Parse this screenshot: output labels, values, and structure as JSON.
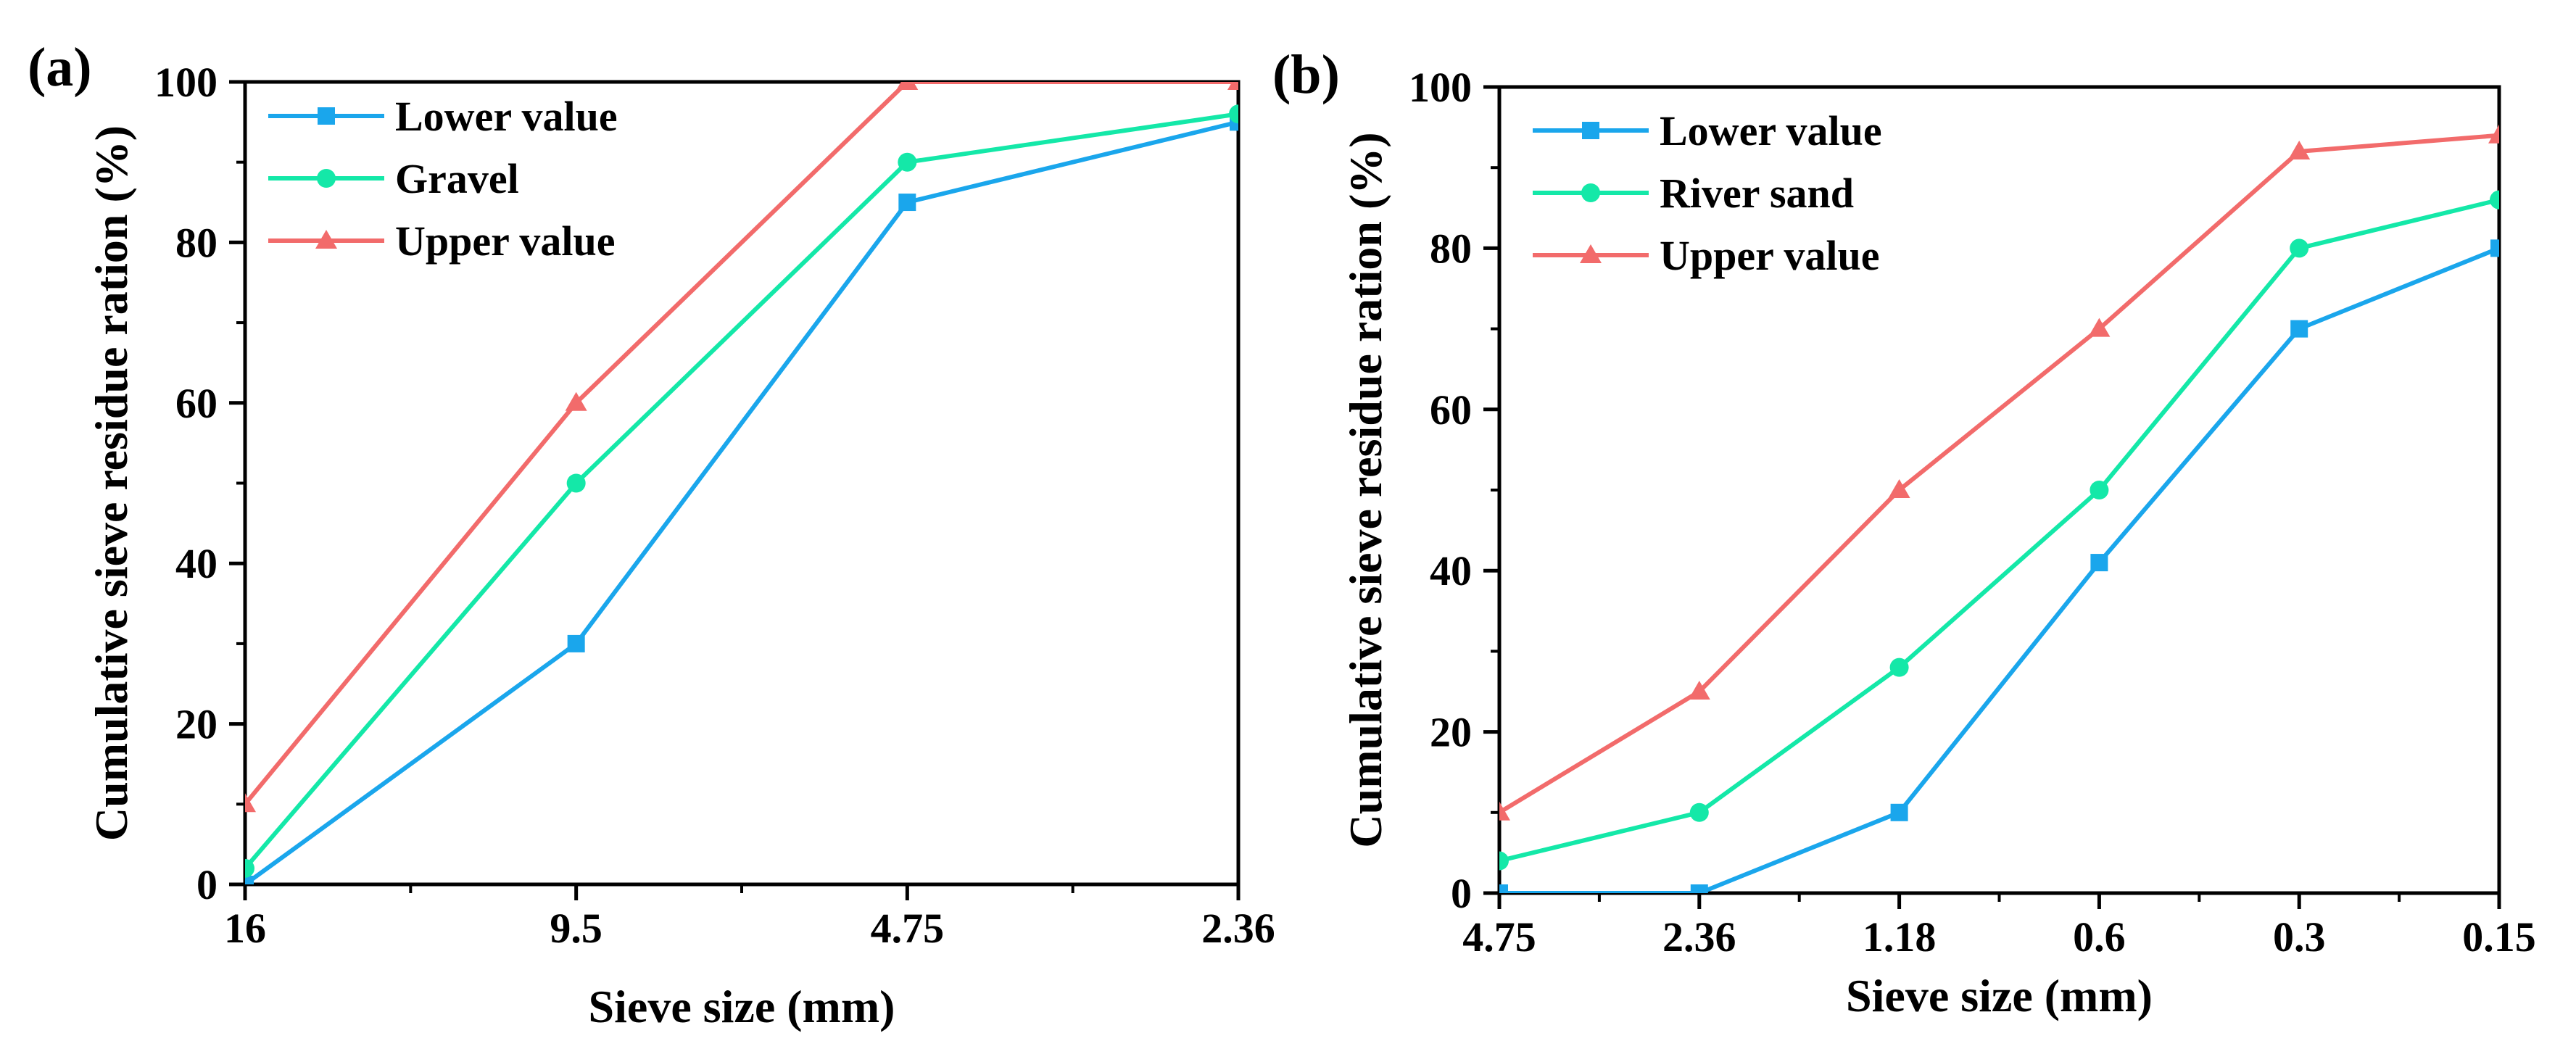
{
  "chart_data": [
    {
      "panel_label": "(a)",
      "type": "line",
      "xlabel": "Sieve size (mm)",
      "ylabel": "Cumulative sieve residue ration (%)",
      "categories": [
        "16",
        "9.5",
        "4.75",
        "2.36"
      ],
      "ylim": [
        0,
        100
      ],
      "yticks": [
        "0",
        "20",
        "40",
        "60",
        "80",
        "100"
      ],
      "grid": false,
      "legend_position": "top-left",
      "series": [
        {
          "name": "Lower value",
          "color": "#1AA6EC",
          "marker": "square",
          "values": [
            0,
            30,
            85,
            95
          ]
        },
        {
          "name": "Gravel",
          "color": "#14E8A8",
          "marker": "circle",
          "values": [
            2,
            50,
            90,
            96
          ]
        },
        {
          "name": "Upper value",
          "color": "#F26B6B",
          "marker": "triangle",
          "values": [
            10,
            60,
            100,
            100
          ]
        }
      ]
    },
    {
      "panel_label": "(b)",
      "type": "line",
      "xlabel": "Sieve size (mm)",
      "ylabel": "Cumulative sieve residue ration (%)",
      "categories": [
        "4.75",
        "2.36",
        "1.18",
        "0.6",
        "0.3",
        "0.15"
      ],
      "ylim": [
        0,
        100
      ],
      "yticks": [
        "0",
        "20",
        "40",
        "60",
        "80",
        "100"
      ],
      "grid": false,
      "legend_position": "top-left",
      "series": [
        {
          "name": "Lower value",
          "color": "#1AA6EC",
          "marker": "square",
          "values": [
            0,
            0,
            10,
            41,
            70,
            80
          ]
        },
        {
          "name": "River sand",
          "color": "#14E8A8",
          "marker": "circle",
          "values": [
            4,
            10,
            28,
            50,
            80,
            86
          ]
        },
        {
          "name": "Upper value",
          "color": "#F26B6B",
          "marker": "triangle",
          "values": [
            10,
            25,
            50,
            70,
            92,
            94
          ]
        }
      ]
    }
  ]
}
